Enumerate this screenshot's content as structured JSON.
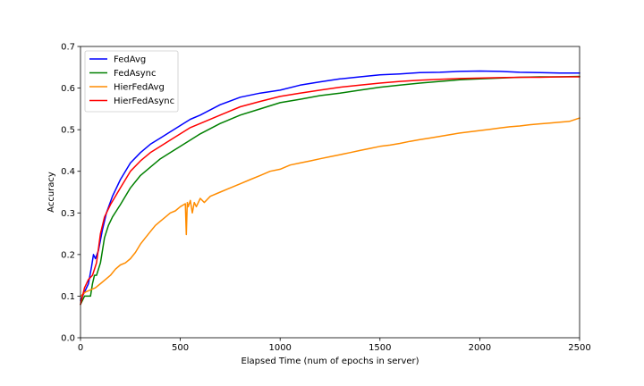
{
  "chart_data": {
    "type": "line",
    "xlabel": "Elapsed Time (num of epochs in server)",
    "ylabel": "Accuracy",
    "xlim": [
      0,
      2500
    ],
    "ylim": [
      0.0,
      0.7
    ],
    "xticks": [
      0,
      500,
      1000,
      1500,
      2000,
      2500
    ],
    "yticks": [
      0.0,
      0.1,
      0.2,
      0.3,
      0.4,
      0.5,
      0.6,
      0.7
    ],
    "xtick_labels": [
      "0",
      "500",
      "1000",
      "1500",
      "2000",
      "2500"
    ],
    "ytick_labels": [
      "0.0",
      "0.1",
      "0.2",
      "0.3",
      "0.4",
      "0.5",
      "0.6",
      "0.7"
    ],
    "grid": false,
    "legend_position": "upper-left",
    "series": [
      {
        "name": "FedAvg",
        "color": "#0000ff",
        "x": [
          0,
          20,
          40,
          55,
          65,
          75,
          90,
          110,
          130,
          160,
          200,
          250,
          300,
          350,
          400,
          450,
          500,
          550,
          600,
          700,
          800,
          900,
          1000,
          1100,
          1200,
          1300,
          1400,
          1500,
          1600,
          1700,
          1800,
          1900,
          2000,
          2100,
          2200,
          2300,
          2400,
          2500
        ],
        "y": [
          0.09,
          0.11,
          0.13,
          0.17,
          0.2,
          0.19,
          0.21,
          0.26,
          0.3,
          0.34,
          0.38,
          0.42,
          0.445,
          0.465,
          0.48,
          0.495,
          0.51,
          0.525,
          0.535,
          0.56,
          0.578,
          0.588,
          0.595,
          0.607,
          0.615,
          0.622,
          0.627,
          0.632,
          0.634,
          0.637,
          0.638,
          0.64,
          0.641,
          0.64,
          0.638,
          0.637,
          0.636,
          0.636
        ]
      },
      {
        "name": "FedAsync",
        "color": "#008000",
        "x": [
          0,
          20,
          50,
          60,
          70,
          80,
          100,
          120,
          140,
          160,
          200,
          250,
          300,
          350,
          400,
          450,
          500,
          550,
          600,
          700,
          800,
          900,
          1000,
          1100,
          1200,
          1300,
          1400,
          1500,
          1600,
          1700,
          1800,
          1900,
          2000,
          2100,
          2200,
          2300,
          2400,
          2500
        ],
        "y": [
          0.08,
          0.1,
          0.1,
          0.13,
          0.15,
          0.15,
          0.18,
          0.24,
          0.27,
          0.29,
          0.32,
          0.36,
          0.39,
          0.41,
          0.43,
          0.445,
          0.46,
          0.475,
          0.49,
          0.515,
          0.535,
          0.55,
          0.565,
          0.573,
          0.582,
          0.588,
          0.595,
          0.602,
          0.607,
          0.612,
          0.616,
          0.62,
          0.622,
          0.624,
          0.626,
          0.627,
          0.627,
          0.628
        ]
      },
      {
        "name": "HierFedAvg",
        "color": "#ff8c00",
        "x": [
          0,
          25,
          50,
          75,
          100,
          125,
          150,
          175,
          200,
          225,
          250,
          275,
          300,
          325,
          350,
          375,
          400,
          425,
          450,
          475,
          500,
          525,
          530,
          535,
          540,
          550,
          560,
          570,
          580,
          600,
          620,
          650,
          700,
          750,
          800,
          850,
          900,
          950,
          1000,
          1050,
          1100,
          1150,
          1200,
          1250,
          1300,
          1350,
          1400,
          1450,
          1500,
          1550,
          1600,
          1650,
          1700,
          1750,
          1800,
          1850,
          1900,
          1950,
          2000,
          2050,
          2100,
          2150,
          2200,
          2250,
          2300,
          2350,
          2400,
          2450,
          2500
        ],
        "y": [
          0.1,
          0.11,
          0.115,
          0.12,
          0.13,
          0.14,
          0.15,
          0.165,
          0.175,
          0.18,
          0.19,
          0.205,
          0.225,
          0.24,
          0.255,
          0.27,
          0.28,
          0.29,
          0.3,
          0.305,
          0.315,
          0.322,
          0.248,
          0.325,
          0.315,
          0.33,
          0.3,
          0.325,
          0.315,
          0.335,
          0.325,
          0.34,
          0.35,
          0.36,
          0.37,
          0.38,
          0.39,
          0.4,
          0.405,
          0.415,
          0.42,
          0.425,
          0.43,
          0.435,
          0.44,
          0.445,
          0.45,
          0.455,
          0.46,
          0.463,
          0.467,
          0.472,
          0.476,
          0.48,
          0.484,
          0.488,
          0.492,
          0.495,
          0.498,
          0.501,
          0.504,
          0.507,
          0.509,
          0.512,
          0.514,
          0.516,
          0.518,
          0.52,
          0.528
        ]
      },
      {
        "name": "HierFedAsync",
        "color": "#ff0000",
        "x": [
          0,
          20,
          40,
          60,
          80,
          100,
          120,
          150,
          200,
          250,
          300,
          350,
          400,
          450,
          500,
          550,
          600,
          700,
          800,
          900,
          1000,
          1100,
          1200,
          1300,
          1400,
          1500,
          1600,
          1700,
          1800,
          1900,
          2000,
          2100,
          2200,
          2300,
          2400,
          2500
        ],
        "y": [
          0.08,
          0.12,
          0.14,
          0.15,
          0.18,
          0.25,
          0.29,
          0.32,
          0.36,
          0.4,
          0.425,
          0.445,
          0.46,
          0.475,
          0.49,
          0.505,
          0.515,
          0.535,
          0.555,
          0.568,
          0.58,
          0.588,
          0.595,
          0.602,
          0.607,
          0.612,
          0.616,
          0.619,
          0.621,
          0.623,
          0.624,
          0.625,
          0.626,
          0.626,
          0.627,
          0.627
        ]
      }
    ]
  }
}
